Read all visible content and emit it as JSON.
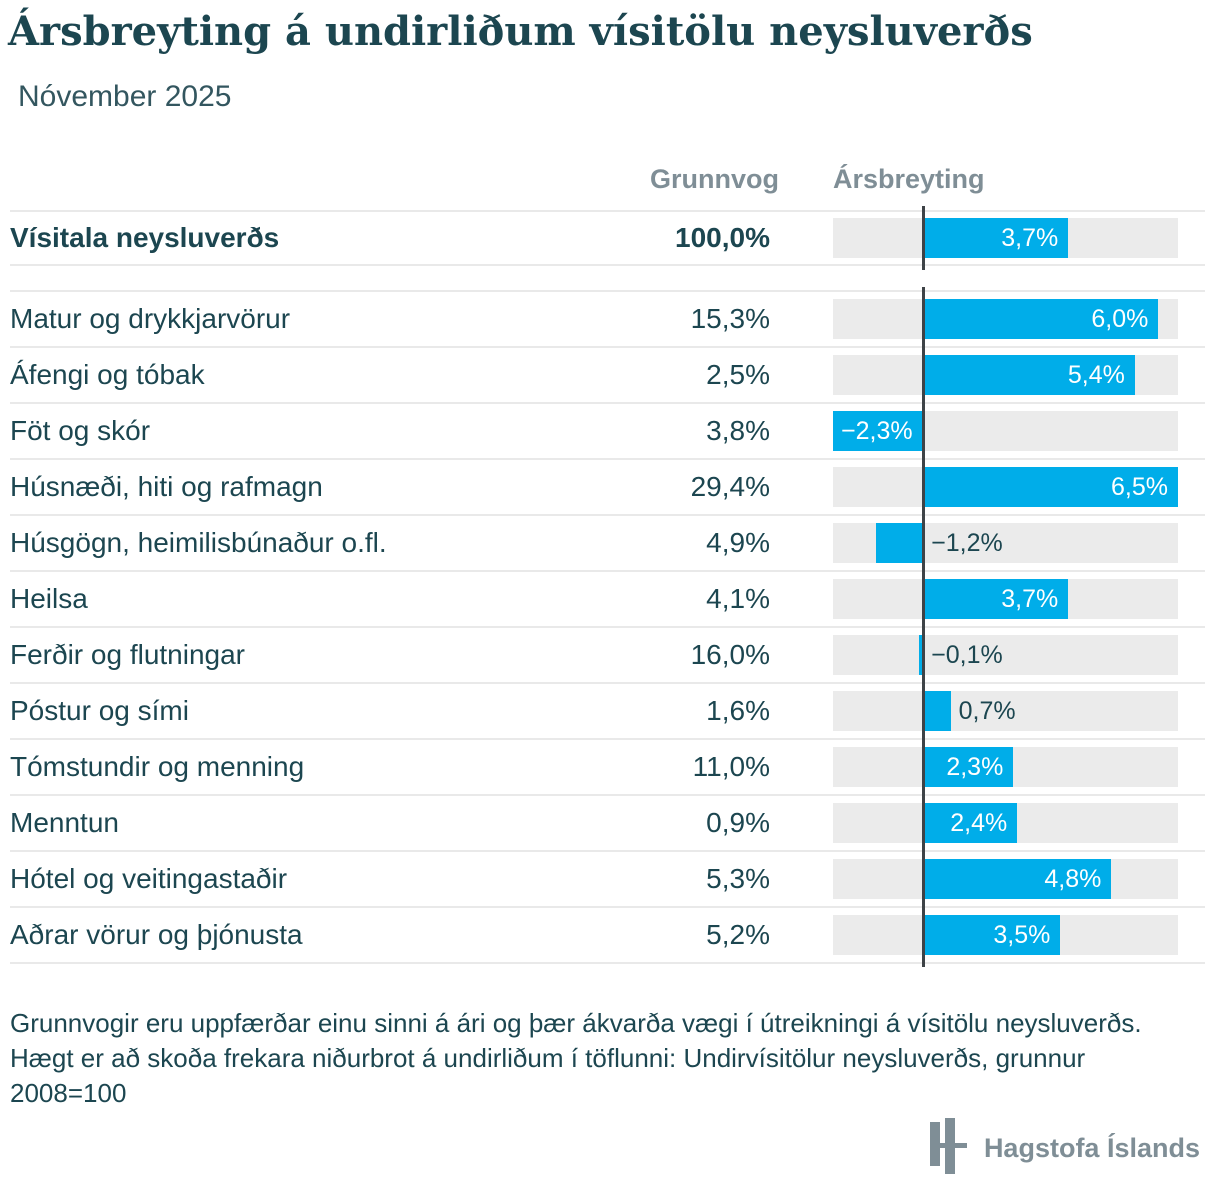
{
  "chart_data": {
    "type": "bar",
    "orientation": "horizontal",
    "title": "Ársbreyting á undirliðum vísitölu neysluverðs",
    "subtitle": "Nóvember 2025",
    "columns": [
      "Grunnvog",
      "Ársbreyting"
    ],
    "xlim": [
      -2.3,
      6.5
    ],
    "unit": "%",
    "total_row": {
      "label": "Vísitala neysluverðs",
      "weight": "100,0%",
      "value": 3.7,
      "value_label": "3,7%"
    },
    "rows": [
      {
        "label": "Matur og drykkjarvörur",
        "weight": "15,3%",
        "value": 6.0,
        "value_label": "6,0%"
      },
      {
        "label": "Áfengi og tóbak",
        "weight": "2,5%",
        "value": 5.4,
        "value_label": "5,4%"
      },
      {
        "label": "Föt og skór",
        "weight": "3,8%",
        "value": -2.3,
        "value_label": "−2,3%"
      },
      {
        "label": "Húsnæði, hiti og rafmagn",
        "weight": "29,4%",
        "value": 6.5,
        "value_label": "6,5%"
      },
      {
        "label": "Húsgögn, heimilisbúnaður o.fl.",
        "weight": "4,9%",
        "value": -1.2,
        "value_label": "−1,2%"
      },
      {
        "label": "Heilsa",
        "weight": "4,1%",
        "value": 3.7,
        "value_label": "3,7%"
      },
      {
        "label": "Ferðir og flutningar",
        "weight": "16,0%",
        "value": -0.1,
        "value_label": "−0,1%"
      },
      {
        "label": "Póstur og sími",
        "weight": "1,6%",
        "value": 0.7,
        "value_label": "0,7%"
      },
      {
        "label": "Tómstundir og menning",
        "weight": "11,0%",
        "value": 2.3,
        "value_label": "2,3%"
      },
      {
        "label": "Menntun",
        "weight": "0,9%",
        "value": 2.4,
        "value_label": "2,4%"
      },
      {
        "label": "Hótel og veitingastaðir",
        "weight": "5,3%",
        "value": 4.8,
        "value_label": "4,8%"
      },
      {
        "label": "Aðrar vörur og þjónusta",
        "weight": "5,2%",
        "value": 3.5,
        "value_label": "3,5%"
      }
    ]
  },
  "footnotes": [
    "Grunnvogir eru uppfærðar einu sinni á ári og þær ákvarða vægi í útreikningi á vísitölu neysluverðs.",
    "Hægt er að skoða frekara niðurbrot á undirliðum í töflunni: Undirvísitölur neysluverðs, grunnur 2008=100"
  ],
  "branding": {
    "logo_text": "Hagstofa Íslands"
  },
  "colors": {
    "bar": "#00ADE9",
    "track": "#EBEBEB",
    "separator": "#E9E9E9",
    "zero_line": "#3E4347",
    "text": "#1C4650",
    "muted_header": "#7F8E96",
    "logo": "#7F8E96"
  }
}
